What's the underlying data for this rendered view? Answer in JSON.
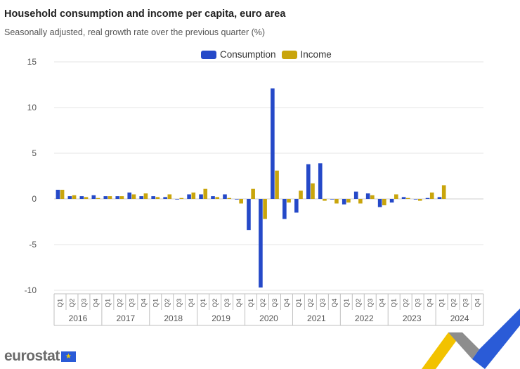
{
  "header": {
    "title": "Household consumption and income per capita, euro area",
    "subtitle": "Seasonally adjusted, real growth rate over the previous quarter (%)"
  },
  "legend": {
    "consumption_label": "Consumption",
    "income_label": "Income"
  },
  "colors": {
    "consumption": "#2549c8",
    "income": "#c9a50c",
    "grid": "#e6e6e6",
    "axis_text": "#555555"
  },
  "logo": {
    "text": "eurostat",
    "flag_icon": "eu-flag-icon"
  },
  "chart_data": {
    "type": "bar",
    "title": "Household consumption and income per capita, euro area",
    "subtitle": "Seasonally adjusted, real growth rate over the previous quarter (%)",
    "ylabel": "",
    "xlabel": "",
    "ylim": [
      -10,
      15
    ],
    "yticks": [
      15,
      10,
      5,
      0,
      -5,
      -10
    ],
    "grid": true,
    "legend_position": "top-center",
    "years": [
      "2016",
      "2017",
      "2018",
      "2019",
      "2020",
      "2021",
      "2022",
      "2023",
      "2024"
    ],
    "quarters": [
      "Q1",
      "Q2",
      "Q3",
      "Q4"
    ],
    "categories": [
      "2016-Q1",
      "2016-Q2",
      "2016-Q3",
      "2016-Q4",
      "2017-Q1",
      "2017-Q2",
      "2017-Q3",
      "2017-Q4",
      "2018-Q1",
      "2018-Q2",
      "2018-Q3",
      "2018-Q4",
      "2019-Q1",
      "2019-Q2",
      "2019-Q3",
      "2019-Q4",
      "2020-Q1",
      "2020-Q2",
      "2020-Q3",
      "2020-Q4",
      "2021-Q1",
      "2021-Q2",
      "2021-Q3",
      "2021-Q4",
      "2022-Q1",
      "2022-Q2",
      "2022-Q3",
      "2022-Q4",
      "2023-Q1",
      "2023-Q2",
      "2023-Q3",
      "2023-Q4",
      "2024-Q1",
      "2024-Q2",
      "2024-Q3",
      "2024-Q4"
    ],
    "series": [
      {
        "name": "Consumption",
        "values": [
          1.0,
          0.3,
          0.3,
          0.4,
          0.3,
          0.3,
          0.7,
          0.3,
          0.3,
          0.2,
          0.0,
          0.5,
          0.5,
          0.3,
          0.5,
          0.0,
          -3.4,
          -9.7,
          12.1,
          -2.2,
          -1.5,
          3.8,
          3.9,
          0.0,
          -0.6,
          0.8,
          0.6,
          -0.9,
          -0.4,
          0.2,
          0.0,
          0.1,
          0.2,
          null,
          null,
          null
        ]
      },
      {
        "name": "Income",
        "values": [
          1.0,
          0.4,
          0.2,
          0.1,
          0.3,
          0.3,
          0.5,
          0.6,
          0.2,
          0.5,
          0.1,
          0.7,
          1.1,
          0.2,
          0.1,
          -0.5,
          1.1,
          -2.2,
          3.1,
          -0.4,
          0.9,
          1.7,
          -0.2,
          -0.5,
          -0.4,
          -0.5,
          0.4,
          -0.7,
          0.5,
          0.1,
          -0.2,
          0.7,
          1.5,
          null,
          null,
          null
        ]
      }
    ]
  }
}
